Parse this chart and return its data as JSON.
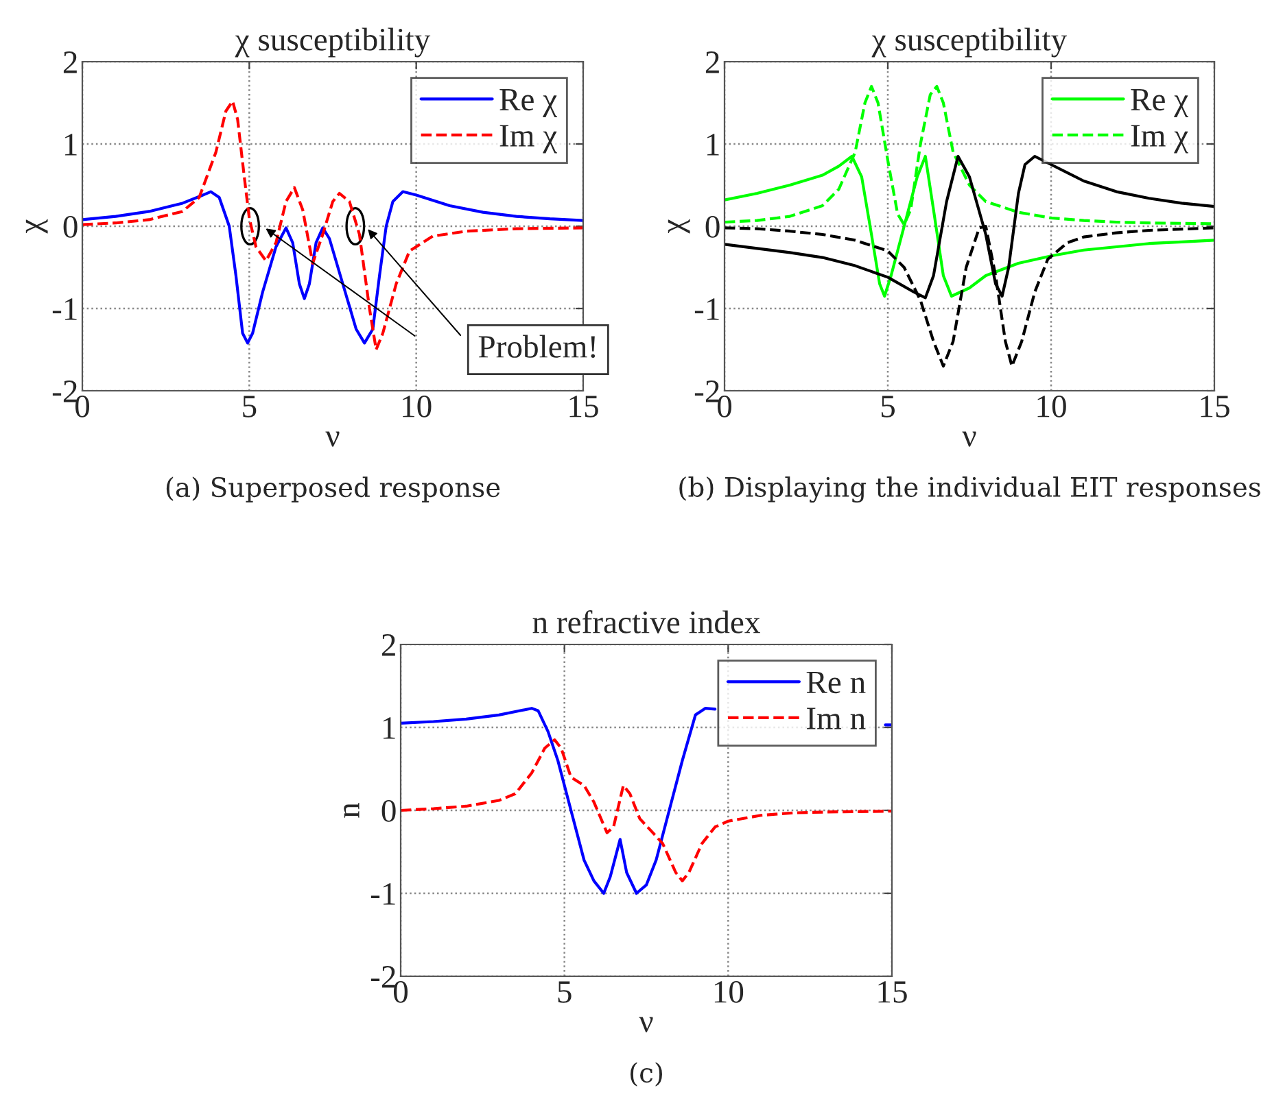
{
  "chart_data": [
    {
      "type": "line",
      "title": "χ susceptibility",
      "xlabel": "ν",
      "ylabel": "χ",
      "xlim": [
        0,
        15
      ],
      "ylim": [
        -2,
        2
      ],
      "xticks": [
        0,
        5,
        10,
        15
      ],
      "yticks": [
        -2,
        -1,
        0,
        1,
        2
      ],
      "grid": true,
      "legend": "top right",
      "annotations": [
        "Problem!",
        "(a) Superposed response"
      ],
      "series": [
        {
          "name": "Re χ",
          "color": "#0000ff",
          "line_style": "solid",
          "x": [
            0,
            1,
            2,
            3,
            3.5,
            3.85,
            4.1,
            4.4,
            4.6,
            4.8,
            4.95,
            5.1,
            5.4,
            5.8,
            6.1,
            6.3,
            6.5,
            6.65,
            6.8,
            7.0,
            7.2,
            7.4,
            7.8,
            8.2,
            8.45,
            8.7,
            8.9,
            9.1,
            9.3,
            9.6,
            10,
            11,
            12,
            13,
            14,
            15
          ],
          "values": [
            0.08,
            0.12,
            0.18,
            0.28,
            0.36,
            0.42,
            0.35,
            0,
            -0.6,
            -1.3,
            -1.42,
            -1.3,
            -0.8,
            -0.25,
            -0.02,
            -0.2,
            -0.7,
            -0.88,
            -0.7,
            -0.2,
            -0.02,
            -0.15,
            -0.7,
            -1.25,
            -1.42,
            -1.25,
            -0.6,
            0,
            0.3,
            0.42,
            0.38,
            0.25,
            0.17,
            0.12,
            0.09,
            0.07
          ]
        },
        {
          "name": "Im χ",
          "color": "#ff0000",
          "line_style": "dashed",
          "x": [
            0,
            1,
            2,
            3,
            3.5,
            4,
            4.3,
            4.5,
            4.65,
            4.85,
            5.0,
            5.2,
            5.5,
            5.8,
            6.1,
            6.35,
            6.6,
            6.9,
            7.2,
            7.5,
            7.7,
            8.0,
            8.3,
            8.6,
            8.8,
            9.0,
            9.4,
            9.8,
            10.5,
            11.5,
            13,
            15
          ],
          "values": [
            0.02,
            0.04,
            0.08,
            0.18,
            0.35,
            0.9,
            1.4,
            1.52,
            1.3,
            0.6,
            0.1,
            -0.25,
            -0.42,
            -0.2,
            0.3,
            0.47,
            0.2,
            -0.45,
            -0.1,
            0.3,
            0.4,
            0.3,
            -0.1,
            -1.0,
            -1.5,
            -1.3,
            -0.7,
            -0.3,
            -0.12,
            -0.06,
            -0.03,
            -0.02
          ]
        }
      ]
    },
    {
      "type": "line",
      "title": "χ susceptibility",
      "xlabel": "ν",
      "ylabel": "χ",
      "xlim": [
        0,
        15
      ],
      "ylim": [
        -2,
        2
      ],
      "xticks": [
        0,
        5,
        10,
        15
      ],
      "yticks": [
        -2,
        -1,
        0,
        1,
        2
      ],
      "grid": true,
      "legend": "top right",
      "annotations": [
        "(b) Displaying the individual EIT responses"
      ],
      "series": [
        {
          "name": "Re χ",
          "color": "#00ff00",
          "line_style": "solid",
          "x": [
            0,
            1,
            2,
            3,
            3.5,
            3.9,
            4.2,
            4.5,
            4.75,
            4.9,
            5.1,
            5.5,
            5.9,
            6.15,
            6.4,
            6.7,
            6.95,
            7.5,
            8,
            9,
            10,
            11,
            12,
            13,
            14,
            15
          ],
          "values": [
            0.32,
            0.4,
            0.5,
            0.62,
            0.73,
            0.85,
            0.6,
            -0.1,
            -0.7,
            -0.85,
            -0.6,
            0,
            0.6,
            0.85,
            0.2,
            -0.6,
            -0.85,
            -0.75,
            -0.6,
            -0.45,
            -0.36,
            -0.29,
            -0.25,
            -0.21,
            -0.19,
            -0.17
          ]
        },
        {
          "name": "Im χ",
          "color": "#00ff00",
          "line_style": "dashed",
          "x": [
            0,
            1,
            2,
            3,
            3.5,
            4,
            4.3,
            4.5,
            4.7,
            5.0,
            5.3,
            5.5,
            5.7,
            6.0,
            6.3,
            6.5,
            6.7,
            7.0,
            7.5,
            8,
            9,
            10,
            11,
            12,
            13,
            15
          ],
          "values": [
            0.05,
            0.07,
            0.12,
            0.25,
            0.45,
            0.9,
            1.5,
            1.7,
            1.5,
            0.8,
            0.15,
            0.02,
            0.2,
            1.0,
            1.6,
            1.7,
            1.5,
            0.9,
            0.5,
            0.3,
            0.17,
            0.1,
            0.07,
            0.05,
            0.04,
            0.03
          ]
        },
        {
          "color": "#000000",
          "line_style": "solid",
          "x": [
            0,
            1,
            2,
            3,
            4,
            5,
            5.8,
            6.15,
            6.4,
            6.8,
            7.15,
            7.5,
            8.0,
            8.3,
            8.5,
            8.7,
            9.0,
            9.2,
            9.5,
            10,
            11,
            12,
            13,
            14,
            15
          ],
          "values": [
            -0.22,
            -0.27,
            -0.32,
            -0.38,
            -0.48,
            -0.62,
            -0.8,
            -0.87,
            -0.6,
            0.3,
            0.85,
            0.6,
            -0.1,
            -0.7,
            -0.85,
            -0.5,
            0.4,
            0.75,
            0.85,
            0.75,
            0.55,
            0.42,
            0.34,
            0.28,
            0.24
          ]
        },
        {
          "color": "#000000",
          "line_style": "dashed",
          "x": [
            0,
            1,
            2,
            3,
            4,
            5,
            5.5,
            6.0,
            6.4,
            6.7,
            7.0,
            7.4,
            7.8,
            8.0,
            8.3,
            8.6,
            8.8,
            9.1,
            9.5,
            9.9,
            10.5,
            11,
            12,
            13,
            15
          ],
          "values": [
            -0.02,
            -0.03,
            -0.06,
            -0.1,
            -0.17,
            -0.3,
            -0.5,
            -0.9,
            -1.4,
            -1.7,
            -1.4,
            -0.5,
            -0.02,
            0,
            -0.6,
            -1.4,
            -1.7,
            -1.4,
            -0.8,
            -0.4,
            -0.2,
            -0.13,
            -0.08,
            -0.05,
            -0.02
          ]
        }
      ]
    },
    {
      "type": "line",
      "title": "n refractive index",
      "xlabel": "ν",
      "ylabel": "n",
      "xlim": [
        0,
        15
      ],
      "ylim": [
        -2,
        2
      ],
      "xticks": [
        0,
        5,
        10,
        15
      ],
      "yticks": [
        -2,
        -1,
        0,
        1,
        2
      ],
      "grid": true,
      "legend": "top right",
      "annotations": [
        "(c)"
      ],
      "series": [
        {
          "name": "Re n",
          "color": "#0000ff",
          "line_style": "solid",
          "x": [
            0,
            1,
            2,
            3,
            3.5,
            4,
            4.2,
            4.5,
            4.8,
            5.2,
            5.6,
            5.9,
            6.2,
            6.4,
            6.7,
            6.9,
            7.2,
            7.5,
            7.8,
            8.2,
            8.6,
            9.0,
            9.3,
            9.6,
            10,
            11,
            12,
            13,
            14.8,
            15
          ],
          "values": [
            1.05,
            1.07,
            1.1,
            1.15,
            1.19,
            1.23,
            1.2,
            0.95,
            0.6,
            0,
            -0.6,
            -0.85,
            -1.0,
            -0.8,
            -0.35,
            -0.75,
            -1.0,
            -0.9,
            -0.6,
            0,
            0.6,
            1.15,
            1.23,
            1.22,
            null,
            null,
            null,
            null,
            1.03,
            1.03
          ]
        },
        {
          "name": "Im n",
          "color": "#ff0000",
          "line_style": "dashed",
          "x": [
            0,
            1,
            2,
            3,
            3.5,
            4,
            4.4,
            4.7,
            4.9,
            5.2,
            5.6,
            5.9,
            6.3,
            6.5,
            6.8,
            7.0,
            7.3,
            7.7,
            8.0,
            8.4,
            8.6,
            8.8,
            9.2,
            9.6,
            10,
            11,
            12,
            13,
            15
          ],
          "values": [
            0,
            0.02,
            0.05,
            0.12,
            0.2,
            0.45,
            0.75,
            0.85,
            0.75,
            0.4,
            0.3,
            0.1,
            -0.27,
            -0.2,
            0.3,
            0.2,
            -0.1,
            -0.27,
            -0.4,
            -0.75,
            -0.85,
            -0.75,
            -0.4,
            -0.2,
            -0.13,
            -0.06,
            -0.03,
            -0.02,
            -0.01
          ]
        }
      ]
    }
  ]
}
